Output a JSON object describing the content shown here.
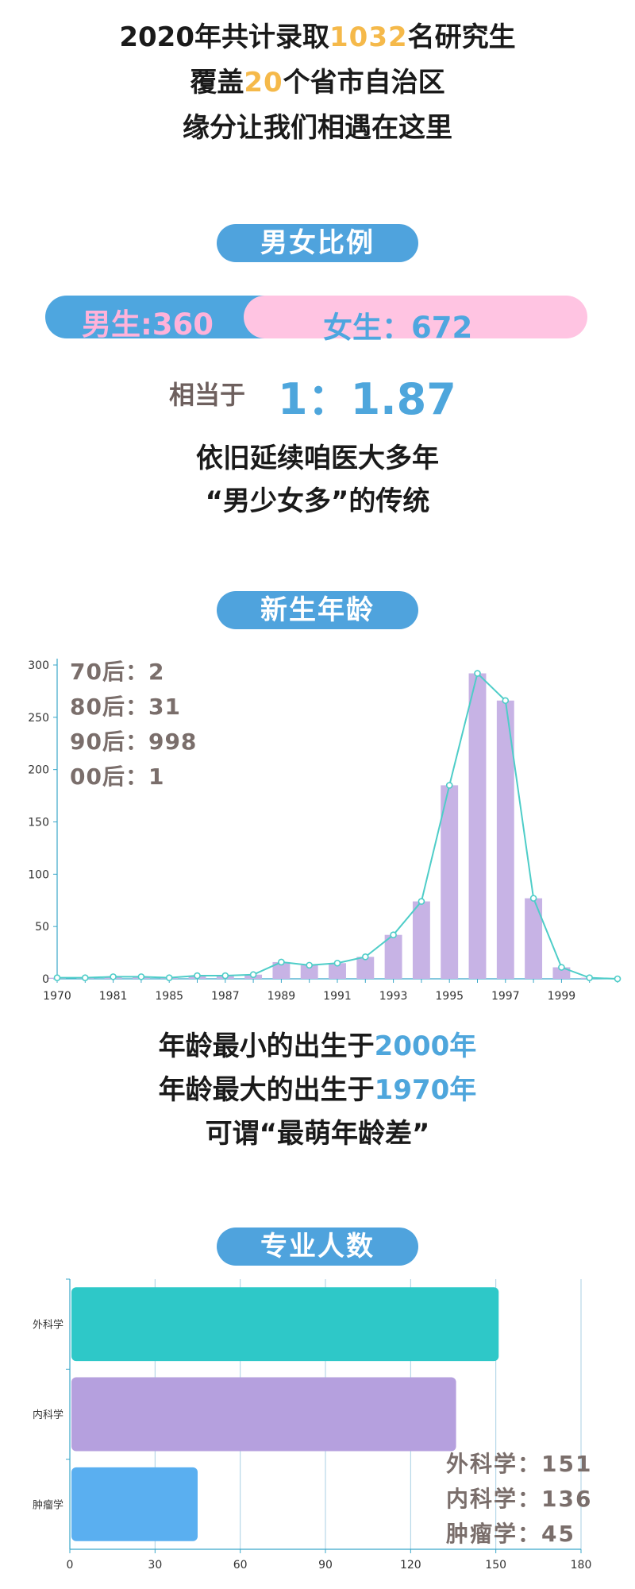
{
  "intro": {
    "line1_pre": "2020年共计录取",
    "line1_num": "1032",
    "line1_post": "名研究生",
    "line2_pre": "覆盖",
    "line2_num": "20",
    "line2_post": "个省市自治区",
    "line3": "缘分让我们相遇在这里"
  },
  "gender_section": {
    "title": "男女比例",
    "male_label": "男生:360",
    "female_label": "女生：672",
    "male_count": 360,
    "female_count": 672,
    "ratio_prefix": "相当于",
    "ratio_value": "1：1.87",
    "note_line1": "依旧延续咱医大多年",
    "note_line2": "“男少女多”的传统",
    "colors": {
      "male": "#4ea6df",
      "female": "#ffc4e2"
    }
  },
  "age_section": {
    "title": "新生年龄",
    "stats": [
      "70后：2",
      "80后：31",
      "90后：998",
      "00后：1"
    ],
    "note_line1_pre": "年龄最小的出生于",
    "note_line1_hl": "2000年",
    "note_line2_pre": "年龄最大的出生于",
    "note_line2_hl": "1970年",
    "note_line3": "可谓“最萌年龄差”"
  },
  "major_section": {
    "title": "专业人数",
    "stats": [
      "外科学：151",
      "内科学：136",
      "肿瘤学：45"
    ]
  },
  "chart_data": [
    {
      "type": "bar",
      "overlay": "line",
      "categories": [
        "1970",
        "",
        "1981",
        "",
        "1985",
        "",
        "1987",
        "",
        "1989",
        "",
        "1991",
        "",
        "1993",
        "",
        "1995",
        "",
        "1997",
        "",
        "1999",
        "",
        ""
      ],
      "values": [
        1,
        1,
        2,
        2,
        1,
        3,
        3,
        4,
        16,
        13,
        15,
        21,
        42,
        74,
        185,
        292,
        266,
        77,
        11,
        1,
        0
      ],
      "line_values": [
        1,
        1,
        2,
        2,
        1,
        3,
        3,
        4,
        16,
        13,
        15,
        21,
        42,
        74,
        185,
        292,
        266,
        77,
        11,
        1,
        0
      ],
      "yticks": [
        0,
        50,
        100,
        150,
        200,
        250,
        300
      ],
      "ylim": [
        0,
        300
      ],
      "bar_color": "#c7b3e5",
      "line_color": "#4ecdc8"
    },
    {
      "type": "bar",
      "orientation": "horizontal",
      "categories": [
        "外科学",
        "内科学",
        "肿瘤学"
      ],
      "values": [
        151,
        136,
        45
      ],
      "xticks": [
        0,
        30,
        60,
        90,
        120,
        150,
        180
      ],
      "xlim": [
        0,
        180
      ],
      "colors": [
        "#2ec8c8",
        "#b5a0de",
        "#5aaff0"
      ]
    }
  ]
}
